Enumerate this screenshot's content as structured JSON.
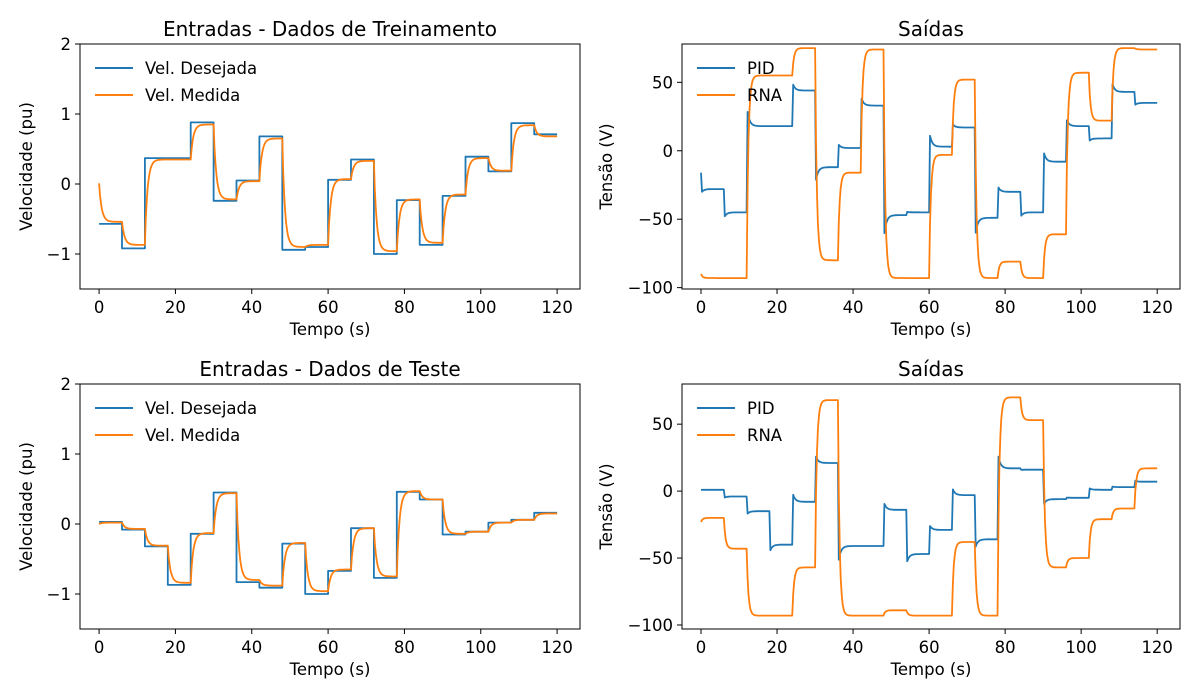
{
  "colors": {
    "blue": "#1f77b4",
    "orange": "#ff7f0e"
  },
  "chart_data": [
    {
      "type": "line",
      "title": "Entradas - Dados de Treinamento",
      "xlabel": "Tempo (s)",
      "ylabel": "Velocidade (pu)",
      "xlim": [
        -5,
        126
      ],
      "ylim": [
        -1.5,
        2
      ],
      "xticks": [
        0,
        20,
        40,
        60,
        80,
        100,
        120
      ],
      "yticks": [
        -1,
        0,
        1,
        2
      ],
      "grid": false,
      "legend": "top-left",
      "series": [
        {
          "name": "Vel. Desejada",
          "color": "#1f77b4",
          "style": "step",
          "x": [
            0,
            6,
            12,
            18,
            24,
            30,
            36,
            42,
            48,
            54,
            60,
            66,
            72,
            78,
            84,
            90,
            96,
            102,
            108,
            114,
            120
          ],
          "y": [
            -0.57,
            -0.92,
            0.37,
            0.37,
            0.88,
            -0.24,
            0.05,
            0.68,
            -0.94,
            -0.9,
            0.06,
            0.35,
            -1.0,
            -0.23,
            -0.87,
            -0.17,
            0.39,
            0.18,
            0.87,
            0.71,
            0.71
          ]
        },
        {
          "name": "Vel. Medida",
          "color": "#ff7f0e",
          "style": "response",
          "x": [
            0,
            6,
            12,
            18,
            24,
            30,
            36,
            42,
            48,
            54,
            60,
            66,
            72,
            78,
            84,
            90,
            96,
            102,
            108,
            114,
            120
          ],
          "y": [
            -0.54,
            -0.87,
            0.35,
            0.35,
            0.85,
            -0.22,
            0.04,
            0.65,
            -0.9,
            -0.87,
            0.07,
            0.33,
            -0.96,
            -0.22,
            -0.84,
            -0.15,
            0.37,
            0.19,
            0.84,
            0.68,
            0.68
          ],
          "start": 0.01
        }
      ]
    },
    {
      "type": "line",
      "title": "Saídas",
      "xlabel": "Tempo (s)",
      "ylabel": "Tensão (V)",
      "xlim": [
        -5,
        126
      ],
      "ylim": [
        -101,
        78
      ],
      "xticks": [
        0,
        20,
        40,
        60,
        80,
        100,
        120
      ],
      "yticks": [
        -100,
        -50,
        0,
        50
      ],
      "grid": false,
      "legend": "top-left",
      "series": [
        {
          "name": "PID",
          "color": "#1f77b4",
          "style": "pid",
          "x": [
            0,
            6,
            12,
            18,
            24,
            30,
            36,
            42,
            48,
            54,
            60,
            66,
            72,
            78,
            84,
            90,
            96,
            102,
            108,
            114,
            120
          ],
          "y": [
            -28,
            -45,
            18,
            18,
            44,
            -12,
            2,
            33,
            -47,
            -45,
            3,
            17,
            -49,
            -30,
            -45,
            -8,
            18,
            9,
            43,
            35,
            35
          ],
          "start": -16
        },
        {
          "name": "RNA",
          "color": "#ff7f0e",
          "style": "rna",
          "x": [
            0,
            6,
            12,
            18,
            24,
            30,
            36,
            42,
            48,
            54,
            60,
            66,
            72,
            78,
            84,
            90,
            96,
            102,
            108,
            114,
            120
          ],
          "y": [
            -93,
            -93,
            55,
            55,
            75,
            -80,
            -16,
            74,
            -93,
            -93,
            -3,
            52,
            -93,
            -81,
            -93,
            -61,
            57,
            22,
            75,
            74,
            74
          ],
          "start": -90
        }
      ]
    },
    {
      "type": "line",
      "title": "Entradas - Dados de Teste",
      "xlabel": "Tempo (s)",
      "ylabel": "Velocidade (pu)",
      "xlim": [
        -5,
        126
      ],
      "ylim": [
        -1.5,
        2
      ],
      "xticks": [
        0,
        20,
        40,
        60,
        80,
        100,
        120
      ],
      "yticks": [
        -1,
        0,
        1,
        2
      ],
      "grid": false,
      "legend": "top-left",
      "series": [
        {
          "name": "Vel. Desejada",
          "color": "#1f77b4",
          "style": "step",
          "x": [
            0,
            6,
            12,
            18,
            24,
            30,
            36,
            42,
            48,
            54,
            60,
            66,
            72,
            78,
            84,
            90,
            96,
            102,
            108,
            114,
            120
          ],
          "y": [
            0.03,
            -0.08,
            -0.32,
            -0.87,
            -0.14,
            0.45,
            -0.83,
            -0.91,
            -0.28,
            -1.0,
            -0.67,
            -0.06,
            -0.77,
            0.46,
            0.35,
            -0.15,
            -0.11,
            0.02,
            0.06,
            0.16,
            0.16
          ]
        },
        {
          "name": "Vel. Medida",
          "color": "#ff7f0e",
          "style": "response",
          "x": [
            0,
            6,
            12,
            18,
            24,
            30,
            36,
            42,
            48,
            54,
            60,
            66,
            72,
            78,
            84,
            90,
            96,
            102,
            108,
            114,
            120
          ],
          "y": [
            0.02,
            -0.07,
            -0.31,
            -0.84,
            -0.13,
            0.44,
            -0.8,
            -0.88,
            -0.27,
            -0.96,
            -0.65,
            -0.06,
            -0.75,
            0.47,
            0.35,
            -0.14,
            -0.11,
            0.02,
            0.06,
            0.15,
            0.15
          ],
          "start": 0.0
        }
      ]
    },
    {
      "type": "line",
      "title": "Saídas",
      "xlabel": "Tempo (s)",
      "ylabel": "Tensão (V)",
      "xlim": [
        -5,
        126
      ],
      "ylim": [
        -103,
        80
      ],
      "xticks": [
        0,
        20,
        40,
        60,
        80,
        100,
        120
      ],
      "yticks": [
        -100,
        -50,
        0,
        50
      ],
      "grid": false,
      "legend": "top-left",
      "series": [
        {
          "name": "PID",
          "color": "#1f77b4",
          "style": "pid",
          "x": [
            0,
            6,
            12,
            18,
            24,
            30,
            36,
            42,
            48,
            54,
            60,
            66,
            72,
            78,
            84,
            90,
            96,
            102,
            108,
            114,
            120
          ],
          "y": [
            1,
            -4,
            -15,
            -40,
            -8,
            21,
            -41,
            -41,
            -14,
            -47,
            -29,
            -3,
            -36,
            17,
            16,
            -6,
            -5,
            1,
            3,
            7,
            7
          ],
          "start": 1
        },
        {
          "name": "RNA",
          "color": "#ff7f0e",
          "style": "rna",
          "x": [
            0,
            6,
            12,
            18,
            24,
            30,
            36,
            42,
            48,
            54,
            60,
            66,
            72,
            78,
            84,
            90,
            96,
            102,
            108,
            114,
            120
          ],
          "y": [
            -20,
            -43,
            -93,
            -93,
            -57,
            68,
            -93,
            -93,
            -89,
            -93,
            -93,
            -38,
            -93,
            70,
            53,
            -57,
            -50,
            -21,
            -13,
            17,
            17
          ],
          "start": -23
        }
      ]
    }
  ]
}
